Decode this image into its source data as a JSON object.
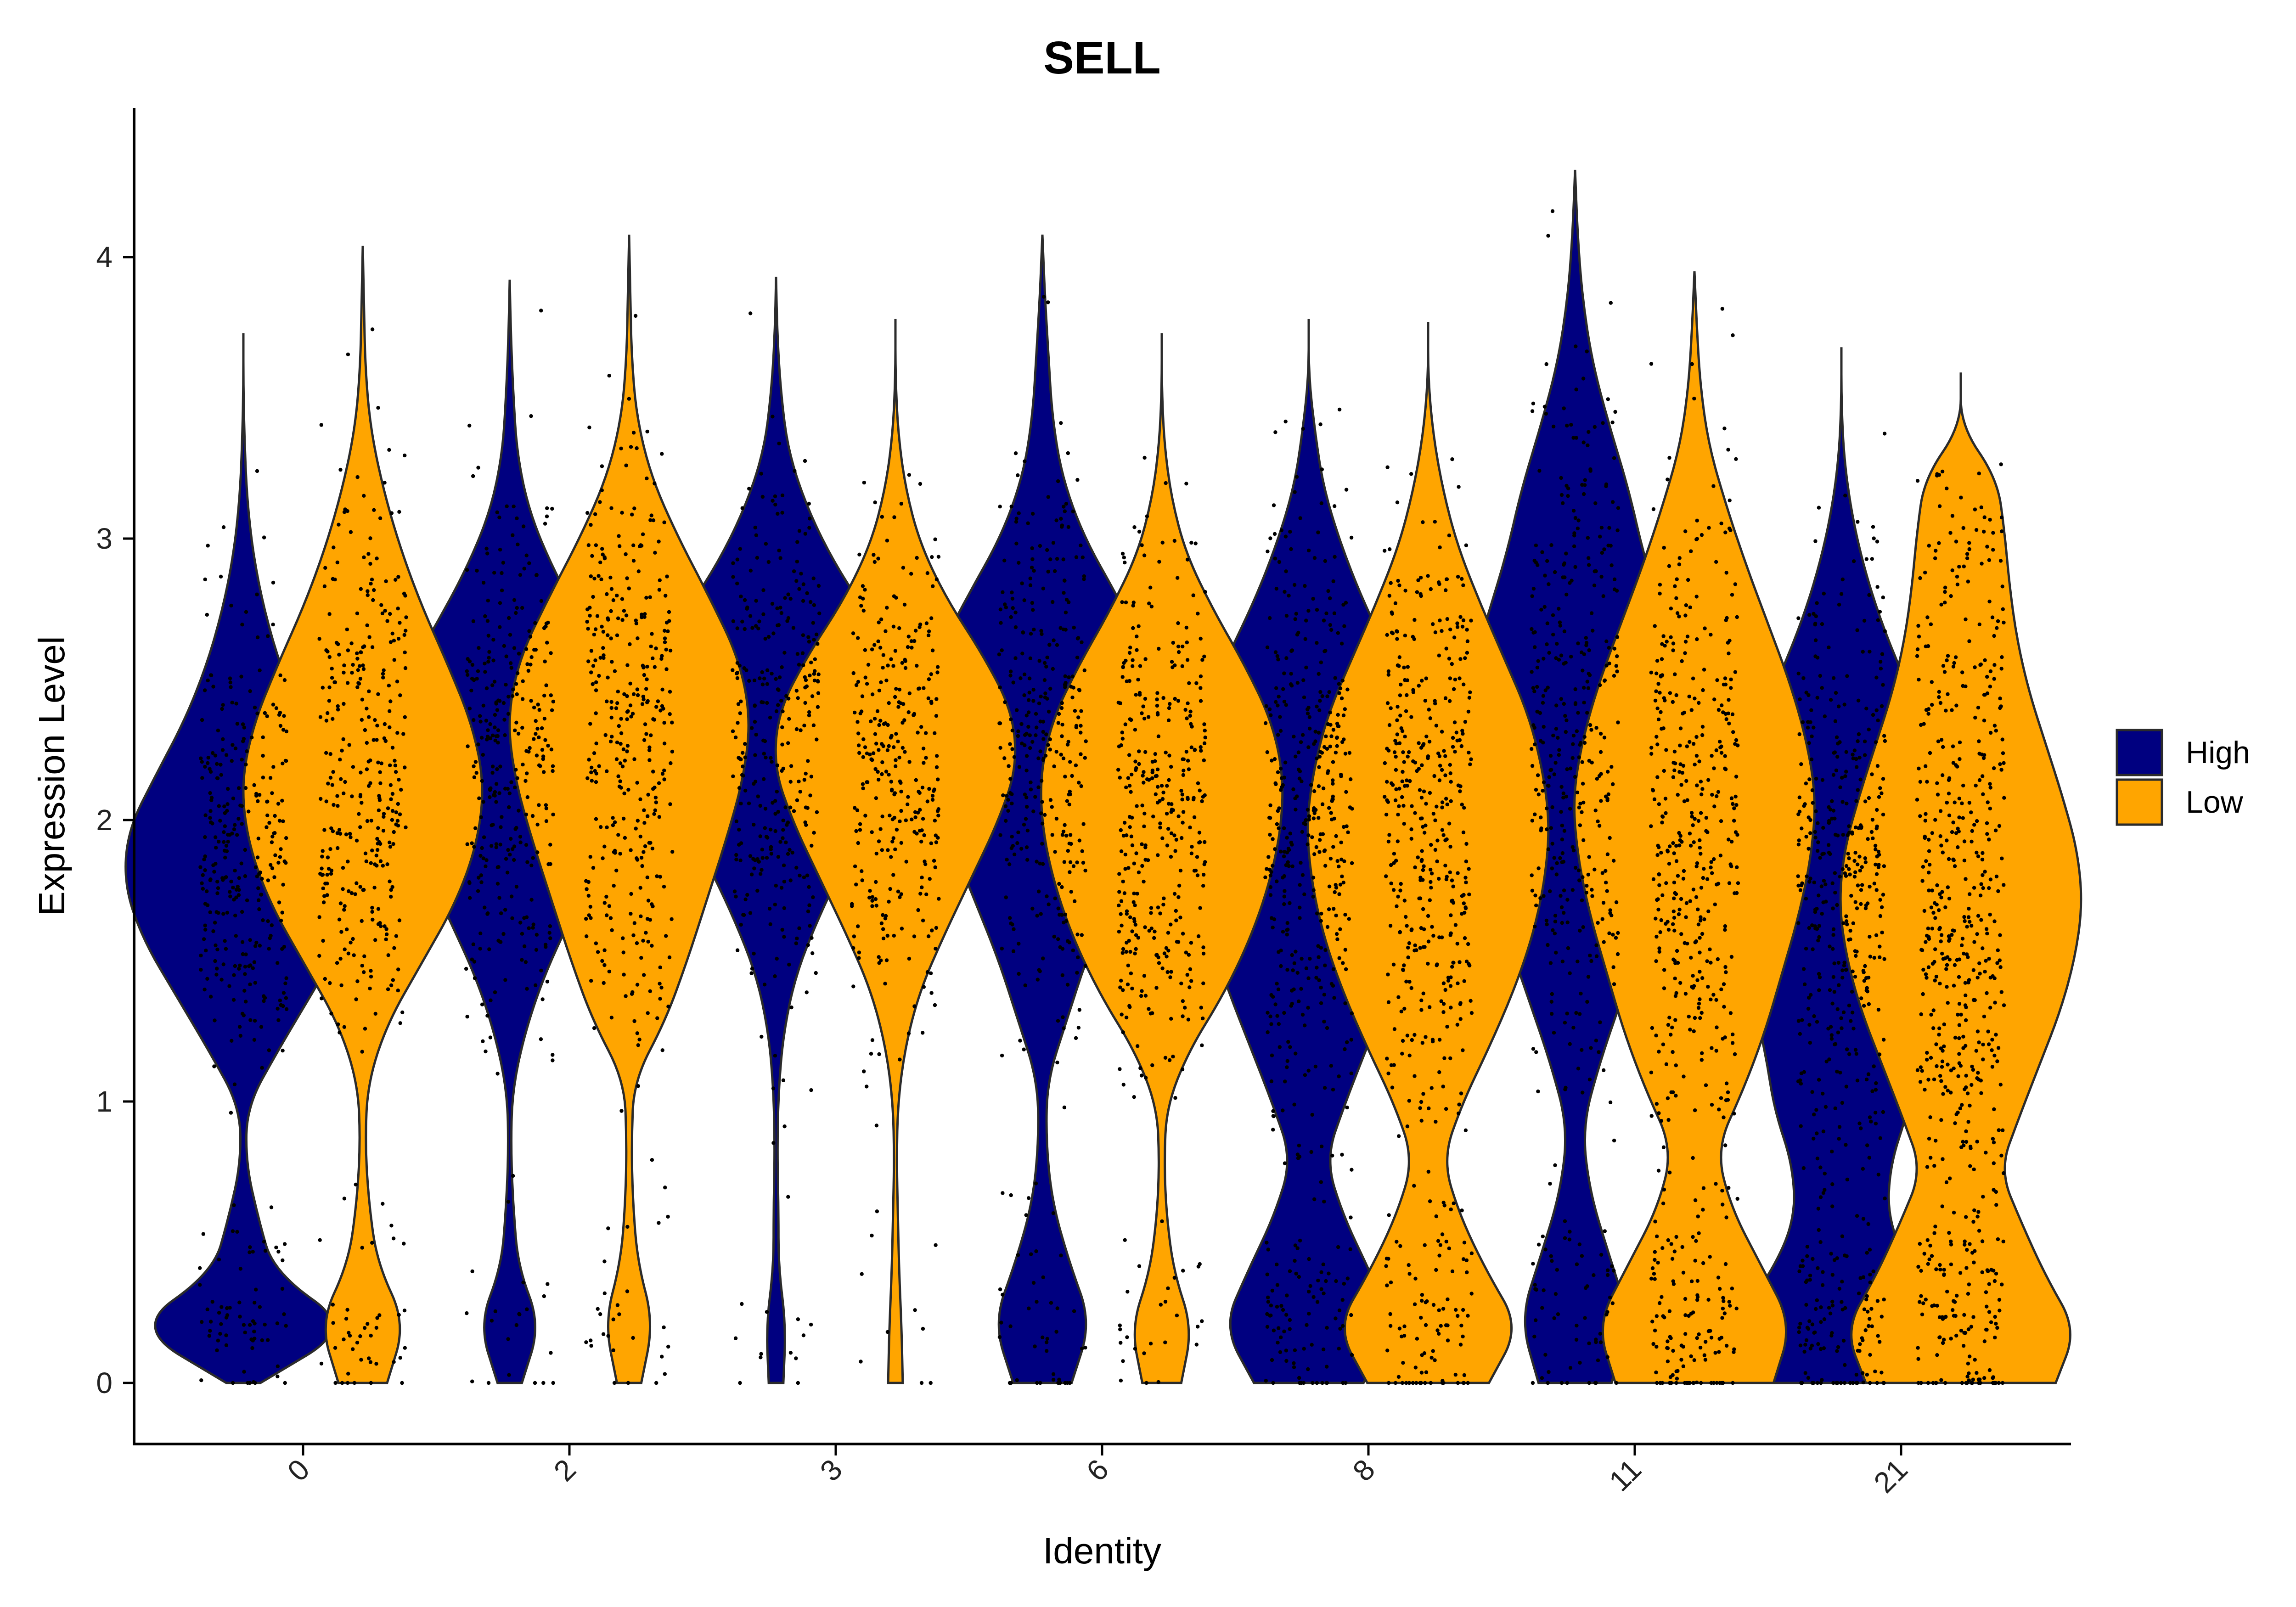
{
  "chart_data": {
    "type": "violin",
    "title": "SELL",
    "xlabel": "Identity",
    "ylabel": "Expression Level",
    "ylim": [
      -0.22,
      4.55
    ],
    "yticks": [
      0,
      1,
      2,
      3,
      4
    ],
    "categories": [
      "0",
      "2",
      "3",
      "6",
      "8",
      "11",
      "21"
    ],
    "legend": {
      "placement": "right",
      "entries": [
        {
          "name": "High",
          "color": "#000080"
        },
        {
          "name": "Low",
          "color": "#FFA500"
        }
      ]
    },
    "grid": false,
    "series": [
      {
        "name": "High",
        "color": "#000080",
        "violins": [
          {
            "category": "0",
            "max": 3.73,
            "mode": 2.35,
            "shape": [
              0.14,
              0.9,
              0.25,
              0.12,
              0.02,
              0.03,
              0.28,
              0.55,
              0.82,
              0.98,
              0.95,
              0.72,
              0.48,
              0.3,
              0.17,
              0.08,
              0.03,
              0.01,
              0.0,
              0.0
            ]
          },
          {
            "category": "2",
            "max": 3.92,
            "mode": 2.65,
            "shape": [
              0.1,
              0.25,
              0.07,
              0.03,
              0.01,
              0.02,
              0.12,
              0.28,
              0.5,
              0.72,
              0.9,
              1.0,
              0.9,
              0.62,
              0.36,
              0.16,
              0.06,
              0.03,
              0.01,
              0.0
            ]
          },
          {
            "category": "3",
            "max": 3.93,
            "mode": 2.8,
            "shape": [
              0.06,
              0.08,
              0.02,
              0.02,
              0.01,
              0.02,
              0.06,
              0.16,
              0.35,
              0.58,
              0.82,
              0.98,
              0.98,
              0.82,
              0.5,
              0.26,
              0.1,
              0.04,
              0.01,
              0.0
            ]
          },
          {
            "category": "6",
            "max": 4.08,
            "mode": 2.6,
            "shape": [
              0.24,
              0.4,
              0.22,
              0.08,
              0.03,
              0.04,
              0.2,
              0.36,
              0.56,
              0.76,
              0.92,
              1.0,
              0.88,
              0.62,
              0.34,
              0.16,
              0.08,
              0.05,
              0.02,
              0.0
            ]
          },
          {
            "category": "8",
            "max": 3.78,
            "mode": 2.55,
            "shape": [
              0.45,
              0.7,
              0.5,
              0.28,
              0.14,
              0.3,
              0.48,
              0.66,
              0.82,
              0.94,
              1.0,
              0.96,
              0.86,
              0.66,
              0.44,
              0.26,
              0.12,
              0.05,
              0.0,
              0.0
            ]
          },
          {
            "category": "11",
            "max": 4.31,
            "mode": 2.4,
            "shape": [
              0.3,
              0.45,
              0.28,
              0.12,
              0.06,
              0.2,
              0.38,
              0.56,
              0.78,
              0.96,
              1.0,
              0.88,
              0.72,
              0.56,
              0.44,
              0.28,
              0.14,
              0.06,
              0.02,
              0.0
            ]
          },
          {
            "category": "21",
            "max": 3.68,
            "mode": 2.2,
            "shape": [
              0.7,
              0.92,
              0.58,
              0.38,
              0.4,
              0.55,
              0.62,
              0.72,
              0.82,
              0.94,
              1.0,
              0.88,
              0.7,
              0.5,
              0.32,
              0.18,
              0.08,
              0.02,
              0.0,
              0.0
            ]
          }
        ]
      },
      {
        "name": "Low",
        "color": "#FFA500",
        "violins": [
          {
            "category": "0",
            "max": 4.04,
            "mode": 2.35,
            "shape": [
              0.2,
              0.35,
              0.12,
              0.05,
              0.02,
              0.04,
              0.2,
              0.48,
              0.76,
              0.94,
              1.0,
              0.9,
              0.7,
              0.48,
              0.3,
              0.16,
              0.06,
              0.02,
              0.01,
              0.0
            ]
          },
          {
            "category": "2",
            "max": 4.08,
            "mode": 2.6,
            "shape": [
              0.1,
              0.2,
              0.07,
              0.03,
              0.02,
              0.04,
              0.3,
              0.48,
              0.64,
              0.8,
              0.94,
              1.0,
              0.9,
              0.66,
              0.4,
              0.18,
              0.06,
              0.02,
              0.01,
              0.0
            ]
          },
          {
            "category": "3",
            "max": 3.78,
            "mode": 2.65,
            "shape": [
              0.06,
              0.05,
              0.03,
              0.02,
              0.01,
              0.02,
              0.08,
              0.2,
              0.4,
              0.62,
              0.84,
              1.0,
              0.96,
              0.72,
              0.42,
              0.2,
              0.08,
              0.02,
              0.0,
              0.0
            ]
          },
          {
            "category": "6",
            "max": 3.73,
            "mode": 2.45,
            "shape": [
              0.16,
              0.25,
              0.1,
              0.04,
              0.02,
              0.04,
              0.22,
              0.5,
              0.72,
              0.88,
              0.98,
              1.0,
              0.9,
              0.68,
              0.42,
              0.2,
              0.08,
              0.02,
              0.0,
              0.0
            ]
          },
          {
            "category": "8",
            "max": 3.77,
            "mode": 2.4,
            "shape": [
              0.5,
              0.75,
              0.48,
              0.26,
              0.12,
              0.28,
              0.5,
              0.7,
              0.86,
              0.96,
              1.0,
              0.94,
              0.82,
              0.62,
              0.42,
              0.24,
              0.12,
              0.04,
              0.0,
              0.0
            ]
          },
          {
            "category": "11",
            "max": 3.95,
            "mode": 2.2,
            "shape": [
              0.65,
              0.8,
              0.55,
              0.3,
              0.18,
              0.4,
              0.58,
              0.72,
              0.86,
              0.96,
              1.0,
              0.92,
              0.78,
              0.6,
              0.42,
              0.26,
              0.12,
              0.05,
              0.02,
              0.0
            ]
          },
          {
            "category": "21",
            "max": 3.59,
            "mode": 2.0,
            "shape": [
              0.78,
              0.95,
              0.7,
              0.5,
              0.32,
              0.48,
              0.65,
              0.82,
              0.94,
              1.0,
              0.96,
              0.84,
              0.7,
              0.56,
              0.46,
              0.4,
              0.36,
              0.3,
              0.0,
              0.0
            ]
          }
        ]
      }
    ]
  }
}
